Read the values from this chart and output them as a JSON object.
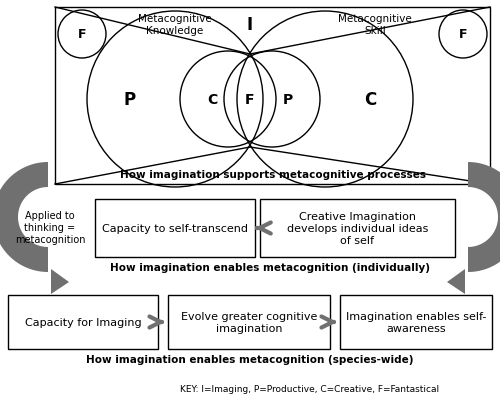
{
  "bg_color": "#ffffff",
  "border_color": "#000000",
  "arrow_color": "#707070",
  "text_color": "#000000",
  "top_section_label": "How imagination supports metacognitive processes",
  "mid_section_label": "How imagination enables metacognition (individually)",
  "bot_section_label": "How imagination enables metacognition (species-wide)",
  "key_label": "KEY: I=Imaging, P=Productive, C=Creative, F=Fantastical",
  "meta_knowledge_label": "Metacognitive\nKnowledge",
  "meta_skill_label": "Metacognitive\nSkill",
  "label_I": "I",
  "label_P_left": "P",
  "label_C_left": "C",
  "label_F_center": "F",
  "label_P_right": "P",
  "label_C_right": "C",
  "label_F_left": "F",
  "label_F_right": "F",
  "applied_label": "Applied to\nthinking =\nmetacognition",
  "mid_box1_text": "Capacity to self-transcend",
  "mid_box2_text": "Creative Imagination\ndevelops individual ideas\nof self",
  "bot_box1_text": "Capacity for Imaging",
  "bot_box2_text": "Evolve greater cognitive\nimagination",
  "bot_box3_text": "Imagination enables self-\nawareness"
}
